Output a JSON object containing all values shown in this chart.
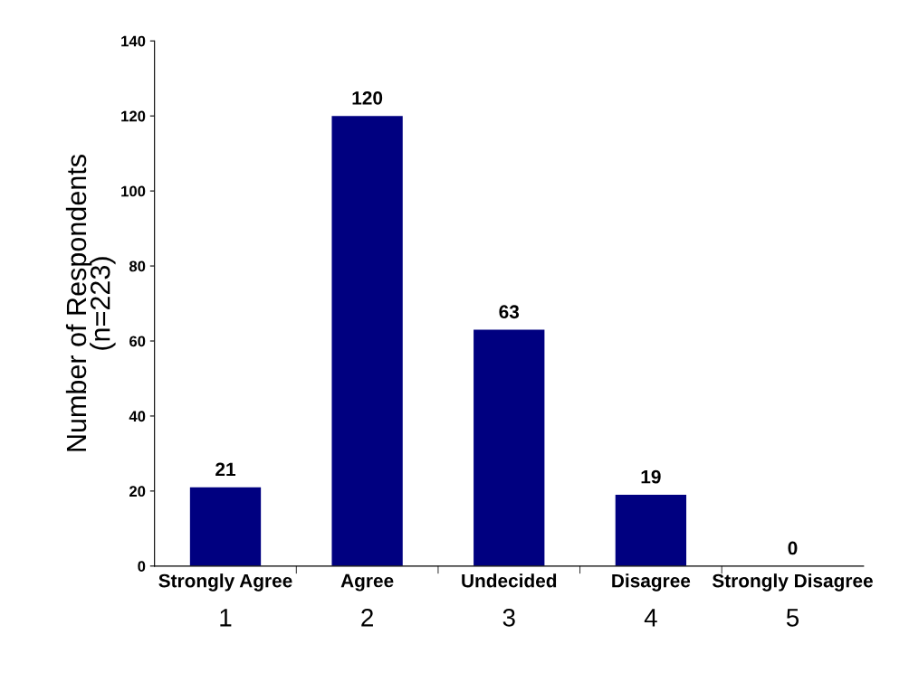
{
  "chart_data": {
    "type": "bar",
    "ylabel": "Number of Respondents\n(n=223)",
    "categories": [
      "Strongly Agree",
      "Agree",
      "Undecided",
      "Disagree",
      "Strongly Disagree"
    ],
    "values": [
      21,
      120,
      63,
      19,
      0
    ],
    "color": "#000080",
    "ylim": [
      0,
      140
    ],
    "yticks": [
      0,
      20,
      40,
      60,
      80,
      100,
      120,
      140
    ],
    "data_labels": true,
    "grid": false,
    "legend": false,
    "annotations": [
      "1",
      "2",
      "3",
      "4",
      "5"
    ]
  }
}
